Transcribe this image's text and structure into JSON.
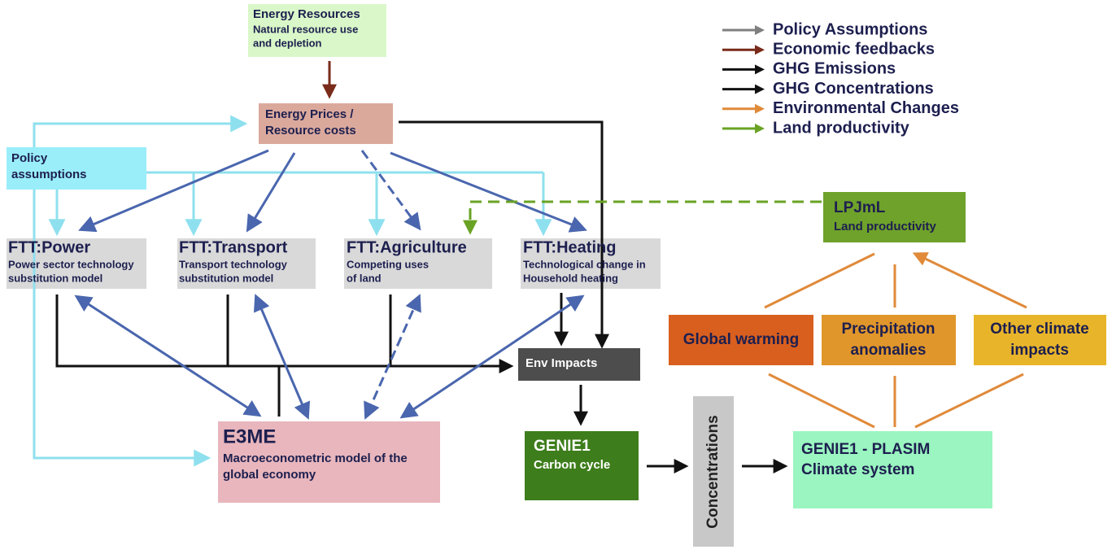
{
  "nodes": {
    "energy_resources": {
      "title": "Energy Resources",
      "lines": [
        "Natural resource use",
        "and depletion"
      ]
    },
    "energy_prices": {
      "lines": [
        "Energy Prices /",
        "Resource costs"
      ]
    },
    "policy": {
      "lines": [
        "Policy",
        "assumptions"
      ]
    },
    "ftt_power": {
      "title": "FTT:Power",
      "lines": [
        "Power sector technology",
        "substitution model"
      ]
    },
    "ftt_transport": {
      "title": "FTT:Transport",
      "lines": [
        "Transport technology",
        "substitution model"
      ]
    },
    "ftt_agriculture": {
      "title": "FTT:Agriculture",
      "lines": [
        "Competing uses",
        "of land"
      ]
    },
    "ftt_heating": {
      "title": "FTT:Heating",
      "lines": [
        "Technological change in",
        "Household heating"
      ]
    },
    "lpjml": {
      "title": "LPJmL",
      "lines": [
        "Land productivity"
      ]
    },
    "global_warming": {
      "lines": [
        "Global warming"
      ]
    },
    "precipitation": {
      "lines": [
        "Precipitation",
        "anomalies"
      ]
    },
    "other_climate": {
      "lines": [
        "Other climate",
        "impacts"
      ]
    },
    "env_impacts": {
      "lines": [
        "Env Impacts"
      ]
    },
    "e3me": {
      "title": "E3ME",
      "lines": [
        "Macroeconometric model of the",
        "global economy"
      ]
    },
    "genie1": {
      "title": "GENIE1",
      "lines": [
        "Carbon cycle"
      ]
    },
    "concentrations": {
      "lines": [
        "Concentrations"
      ]
    },
    "genie_plasim": {
      "lines": [
        "GENIE1 - PLASIM",
        "Climate system"
      ]
    }
  },
  "legend": [
    {
      "label": "Policy Assumptions",
      "color": "#7f7f7f"
    },
    {
      "label": "Economic feedbacks",
      "color": "#7a2b1a"
    },
    {
      "label": "GHG Emissions",
      "color": "#111111"
    },
    {
      "label": "GHG Concentrations",
      "color": "#111111"
    },
    {
      "label": "Environmental Changes",
      "color": "#e08a3a"
    },
    {
      "label": "Land productivity",
      "color": "#6aa324"
    }
  ]
}
